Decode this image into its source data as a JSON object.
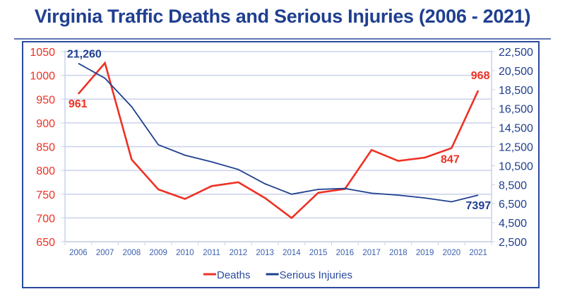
{
  "chart_data": {
    "type": "line",
    "title": "Virginia Traffic Deaths and Serious Injuries (2006 - 2021)",
    "xlabel": "",
    "categories": [
      "2006",
      "2007",
      "2008",
      "2009",
      "2010",
      "2011",
      "2012",
      "2013",
      "2014",
      "2015",
      "2016",
      "2017",
      "2018",
      "2019",
      "2020",
      "2021"
    ],
    "y_left": {
      "label": "",
      "range": [
        650,
        1050
      ],
      "ticks": [
        "650",
        "700",
        "750",
        "800",
        "850",
        "900",
        "950",
        "1000",
        "1050"
      ],
      "tick_values": [
        650,
        700,
        750,
        800,
        850,
        900,
        950,
        1000,
        1050
      ],
      "color": "#ee3124"
    },
    "y_right": {
      "label": "",
      "range": [
        2500,
        22500
      ],
      "ticks": [
        "2,500",
        "4,500",
        "6,500",
        "8,500",
        "10,500",
        "12,500",
        "14,500",
        "16,500",
        "18,500",
        "20,500",
        "22,500"
      ],
      "tick_values": [
        2500,
        4500,
        6500,
        8500,
        10500,
        12500,
        14500,
        16500,
        18500,
        20500,
        22500
      ],
      "color": "#1f3f8f"
    },
    "grid": true,
    "legend_position": "bottom-center",
    "series": [
      {
        "name": "Deaths",
        "axis": "left",
        "color": "#ee3124",
        "values": [
          961,
          1026,
          823,
          760,
          740,
          767,
          775,
          742,
          700,
          753,
          761,
          843,
          820,
          827,
          847,
          968
        ]
      },
      {
        "name": "Serious Injuries",
        "axis": "right",
        "color": "#1f3f8f",
        "values": [
          21260,
          19700,
          16700,
          12700,
          11600,
          10900,
          10100,
          8600,
          7500,
          8000,
          8100,
          7600,
          7400,
          7100,
          6700,
          7397
        ]
      }
    ],
    "annotations": [
      {
        "text": "21,260",
        "series": "Serious Injuries",
        "category": "2006",
        "color": "#1f3f8f"
      },
      {
        "text": "961",
        "series": "Deaths",
        "category": "2006",
        "color": "#ee3124"
      },
      {
        "text": "968",
        "series": "Deaths",
        "category": "2021",
        "color": "#ee3124"
      },
      {
        "text": "847",
        "series": "Deaths",
        "category": "2020",
        "color": "#ee3124"
      },
      {
        "text": "7397",
        "series": "Serious Injuries",
        "category": "2021",
        "color": "#1f3f8f"
      }
    ]
  },
  "colors": {
    "frame": "#2a4a9f",
    "grid": "#c9d2ea",
    "xtick_text": "#3a5fae"
  }
}
